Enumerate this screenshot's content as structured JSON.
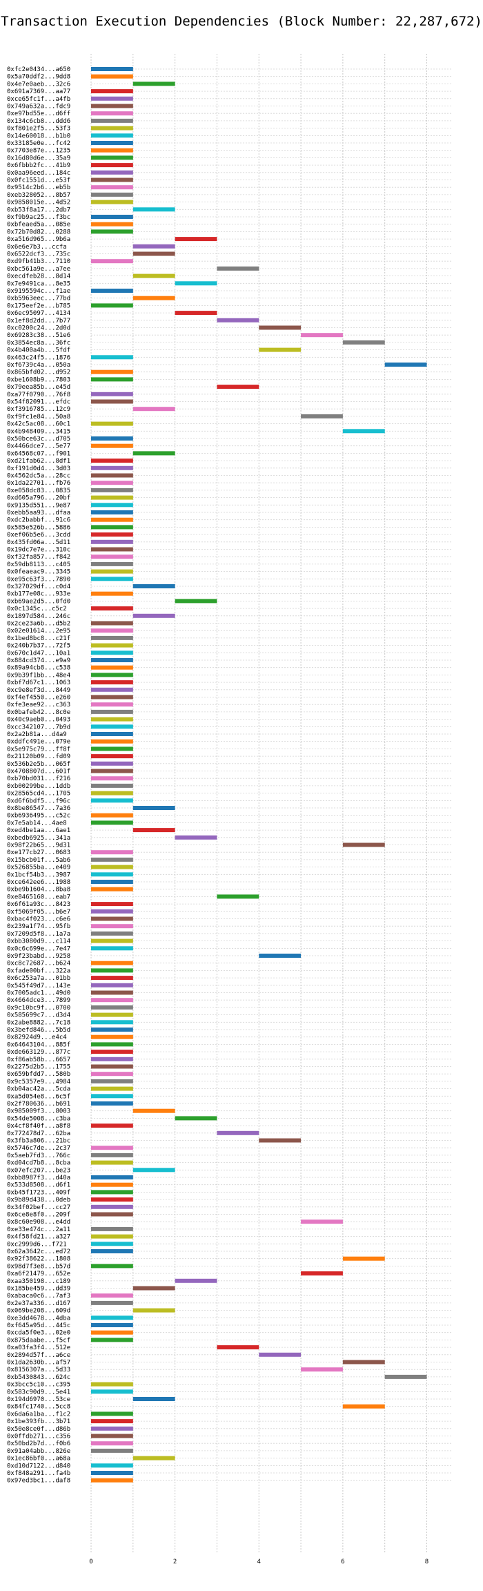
{
  "chart_data": {
    "type": "bar",
    "title": "Transaction Execution Dependencies (Block Number: 22,287,672)",
    "xlabel": "",
    "ylabel": "",
    "xlim": [
      0,
      8.6
    ],
    "xticks": [
      0,
      2,
      4,
      6,
      8
    ],
    "grid": true,
    "palette": [
      "#1f77b4",
      "#ff7f0e",
      "#2ca02c",
      "#d62728",
      "#9467bd",
      "#8c564b",
      "#e377c2",
      "#7f7f7f",
      "#bcbd22",
      "#17becf"
    ],
    "transactions": [
      {
        "label": "0xfc2e0434...a650",
        "start": 0,
        "end": 1
      },
      {
        "label": "0x5a70ddf2...9dd8",
        "start": 0,
        "end": 1
      },
      {
        "label": "0x4e7e0aeb...32c6",
        "start": 1,
        "end": 2
      },
      {
        "label": "0x691a7369...aa77",
        "start": 0,
        "end": 1
      },
      {
        "label": "0xce65fc1f...a4fb",
        "start": 0,
        "end": 1
      },
      {
        "label": "0x749a632a...fdc9",
        "start": 0,
        "end": 1
      },
      {
        "label": "0xe97bd55e...d6ff",
        "start": 0,
        "end": 1
      },
      {
        "label": "0x134c6cb8...ddd6",
        "start": 0,
        "end": 1
      },
      {
        "label": "0xf801e2f5...53f3",
        "start": 0,
        "end": 1
      },
      {
        "label": "0x14e60018...b1b0",
        "start": 0,
        "end": 1
      },
      {
        "label": "0x33185e0e...fc42",
        "start": 0,
        "end": 1
      },
      {
        "label": "0x7703e87e...1235",
        "start": 0,
        "end": 1
      },
      {
        "label": "0x16d80d6e...35a9",
        "start": 0,
        "end": 1
      },
      {
        "label": "0x6fbbb2fc...41b9",
        "start": 0,
        "end": 1
      },
      {
        "label": "0x0aa96eed...184c",
        "start": 0,
        "end": 1
      },
      {
        "label": "0x0fc1551d...e53f",
        "start": 0,
        "end": 1
      },
      {
        "label": "0x9514c2b6...eb5b",
        "start": 0,
        "end": 1
      },
      {
        "label": "0xeb328052...8b57",
        "start": 0,
        "end": 1
      },
      {
        "label": "0x9858015e...4d52",
        "start": 0,
        "end": 1
      },
      {
        "label": "0xb53f8a17...2db7",
        "start": 1,
        "end": 2
      },
      {
        "label": "0xf9b9ac25...f3bc",
        "start": 0,
        "end": 1
      },
      {
        "label": "0xbfeaed5a...085e",
        "start": 0,
        "end": 1
      },
      {
        "label": "0x72b70d82...0288",
        "start": 0,
        "end": 1
      },
      {
        "label": "0xa516d965...9b6a",
        "start": 2,
        "end": 3
      },
      {
        "label": "0x6e6e7b3...ccfa",
        "start": 1,
        "end": 2
      },
      {
        "label": "0x6522dcf3...735c",
        "start": 1,
        "end": 2
      },
      {
        "label": "0xd9fb41b3...7110",
        "start": 0,
        "end": 1
      },
      {
        "label": "0xbc561a9e...a7ee",
        "start": 3,
        "end": 4
      },
      {
        "label": "0xecdfeb28...8d14",
        "start": 1,
        "end": 2
      },
      {
        "label": "0x7e9491ca...8e35",
        "start": 2,
        "end": 3
      },
      {
        "label": "0x9195594c...f1ae",
        "start": 0,
        "end": 1
      },
      {
        "label": "0xb5963eec...77bd",
        "start": 1,
        "end": 2
      },
      {
        "label": "0x175eef2e...b785",
        "start": 0,
        "end": 1
      },
      {
        "label": "0x6ec95097...4134",
        "start": 2,
        "end": 3
      },
      {
        "label": "0x1ef8d2dd...7b77",
        "start": 3,
        "end": 4
      },
      {
        "label": "0xc0200c24...2d0d",
        "start": 4,
        "end": 5
      },
      {
        "label": "0x69283c38...51e6",
        "start": 5,
        "end": 6
      },
      {
        "label": "0x3854ec8a...36fc",
        "start": 6,
        "end": 7
      },
      {
        "label": "0x4b400a4b...5fdf",
        "start": 4,
        "end": 5
      },
      {
        "label": "0x463c24f5...1876",
        "start": 0,
        "end": 1
      },
      {
        "label": "0xf6739c4a...050a",
        "start": 7,
        "end": 8
      },
      {
        "label": "0x865bfd02...d952",
        "start": 0,
        "end": 1
      },
      {
        "label": "0xbe1608b9...7803",
        "start": 0,
        "end": 1
      },
      {
        "label": "0x79eea85b...e45d",
        "start": 3,
        "end": 4
      },
      {
        "label": "0xa77f0790...76f8",
        "start": 0,
        "end": 1
      },
      {
        "label": "0x54f82091...efdc",
        "start": 0,
        "end": 1
      },
      {
        "label": "0xf3916785...12c9",
        "start": 1,
        "end": 2
      },
      {
        "label": "0xf9fc1e84...50a8",
        "start": 5,
        "end": 6
      },
      {
        "label": "0x42c5ac08...60c1",
        "start": 0,
        "end": 1
      },
      {
        "label": "0x4b948409...3415",
        "start": 6,
        "end": 7
      },
      {
        "label": "0x50bce63c...d705",
        "start": 0,
        "end": 1
      },
      {
        "label": "0x4466dce7...5e77",
        "start": 0,
        "end": 1
      },
      {
        "label": "0x64568c07...f901",
        "start": 1,
        "end": 2
      },
      {
        "label": "0xd21fab62...8df1",
        "start": 0,
        "end": 1
      },
      {
        "label": "0xf191d0d4...3d03",
        "start": 0,
        "end": 1
      },
      {
        "label": "0x4562dc5a...28cc",
        "start": 0,
        "end": 1
      },
      {
        "label": "0x1da22701...fb76",
        "start": 0,
        "end": 1
      },
      {
        "label": "0xe058dc83...0835",
        "start": 0,
        "end": 1
      },
      {
        "label": "0xd605a796...20bf",
        "start": 0,
        "end": 1
      },
      {
        "label": "0x9135d551...9e87",
        "start": 0,
        "end": 1
      },
      {
        "label": "0xebb5aa93...dfaa",
        "start": 0,
        "end": 1
      },
      {
        "label": "0xdc2babbf...91c6",
        "start": 0,
        "end": 1
      },
      {
        "label": "0x585e526b...5886",
        "start": 0,
        "end": 1
      },
      {
        "label": "0xef06b5e6...3cdd",
        "start": 0,
        "end": 1
      },
      {
        "label": "0x435fd06a...5d11",
        "start": 0,
        "end": 1
      },
      {
        "label": "0x19dc7e7e...310c",
        "start": 0,
        "end": 1
      },
      {
        "label": "0xf32fa857...f842",
        "start": 0,
        "end": 1
      },
      {
        "label": "0x59db8113...c405",
        "start": 0,
        "end": 1
      },
      {
        "label": "0x0feaeac9...3345",
        "start": 0,
        "end": 1
      },
      {
        "label": "0xe95c63f3...7890",
        "start": 0,
        "end": 1
      },
      {
        "label": "0x327029df...c0d4",
        "start": 1,
        "end": 2
      },
      {
        "label": "0xb177e08c...933e",
        "start": 0,
        "end": 1
      },
      {
        "label": "0xb69ae2d5...0fd0",
        "start": 2,
        "end": 3
      },
      {
        "label": "0x0c1345c...c5c2",
        "start": 0,
        "end": 1
      },
      {
        "label": "0x1897d584...246c",
        "start": 1,
        "end": 2
      },
      {
        "label": "0x2ce23a6b...d5b2",
        "start": 0,
        "end": 1
      },
      {
        "label": "0x02e01614...2e95",
        "start": 0,
        "end": 1
      },
      {
        "label": "0x1bed8bc8...c21f",
        "start": 0,
        "end": 1
      },
      {
        "label": "0x240b7b37...72f5",
        "start": 0,
        "end": 1
      },
      {
        "label": "0x670c1d47...10a1",
        "start": 0,
        "end": 1
      },
      {
        "label": "0x884cd374...e9a9",
        "start": 0,
        "end": 1
      },
      {
        "label": "0x89a94cb8...c538",
        "start": 0,
        "end": 1
      },
      {
        "label": "0x9b39f1bb...48e4",
        "start": 0,
        "end": 1
      },
      {
        "label": "0xbf7d67c1...1063",
        "start": 0,
        "end": 1
      },
      {
        "label": "0xc9e8ef3d...8449",
        "start": 0,
        "end": 1
      },
      {
        "label": "0xf4ef4550...e260",
        "start": 0,
        "end": 1
      },
      {
        "label": "0xfe3eae92...c363",
        "start": 0,
        "end": 1
      },
      {
        "label": "0x0bafeb42...8c0e",
        "start": 0,
        "end": 1
      },
      {
        "label": "0x40c9aeb0...0493",
        "start": 0,
        "end": 1
      },
      {
        "label": "0xcc342107...7b9d",
        "start": 0,
        "end": 1
      },
      {
        "label": "0x2a2b81a...d4a9",
        "start": 0,
        "end": 1
      },
      {
        "label": "0xddfc491e...079e",
        "start": 0,
        "end": 1
      },
      {
        "label": "0x5e975c79...ff8f",
        "start": 0,
        "end": 1
      },
      {
        "label": "0x21120b09...fd09",
        "start": 0,
        "end": 1
      },
      {
        "label": "0x536b2e5b...065f",
        "start": 0,
        "end": 1
      },
      {
        "label": "0x4708807d...601f",
        "start": 0,
        "end": 1
      },
      {
        "label": "0xb70bd031...f216",
        "start": 0,
        "end": 1
      },
      {
        "label": "0xb00299be...1ddb",
        "start": 0,
        "end": 1
      },
      {
        "label": "0x28565cd4...1705",
        "start": 0,
        "end": 1
      },
      {
        "label": "0xd6f6bdf5...f96c",
        "start": 0,
        "end": 1
      },
      {
        "label": "0x8be86547...7a36",
        "start": 1,
        "end": 2
      },
      {
        "label": "0xb6936495...c52c",
        "start": 0,
        "end": 1
      },
      {
        "label": "0x7e5ab14...4ae8",
        "start": 0,
        "end": 1
      },
      {
        "label": "0xed4be1aa...6ae1",
        "start": 1,
        "end": 2
      },
      {
        "label": "0xbedb6925...341a",
        "start": 2,
        "end": 3
      },
      {
        "label": "0x98f22b65...9d31",
        "start": 6,
        "end": 7
      },
      {
        "label": "0xe177cb27...0683",
        "start": 0,
        "end": 1
      },
      {
        "label": "0x15bcb01f...5ab6",
        "start": 0,
        "end": 1
      },
      {
        "label": "0x526855ba...e409",
        "start": 0,
        "end": 1
      },
      {
        "label": "0x1bcf54b3...3987",
        "start": 0,
        "end": 1
      },
      {
        "label": "0xce642ee6...1988",
        "start": 0,
        "end": 1
      },
      {
        "label": "0xbe9b1604...8ba8",
        "start": 0,
        "end": 1
      },
      {
        "label": "0xe8465160...eab7",
        "start": 3,
        "end": 4
      },
      {
        "label": "0x6f61a93c...8423",
        "start": 0,
        "end": 1
      },
      {
        "label": "0xf5069f05...b6e7",
        "start": 0,
        "end": 1
      },
      {
        "label": "0xbac4f023...c6e6",
        "start": 0,
        "end": 1
      },
      {
        "label": "0x239a1f74...95fb",
        "start": 0,
        "end": 1
      },
      {
        "label": "0x7209d5f8...1a7a",
        "start": 0,
        "end": 1
      },
      {
        "label": "0xbb3080d9...c114",
        "start": 0,
        "end": 1
      },
      {
        "label": "0x0c6c699e...7e47",
        "start": 0,
        "end": 1
      },
      {
        "label": "0x9f23babd...9258",
        "start": 4,
        "end": 5
      },
      {
        "label": "0xc8c72687...b624",
        "start": 0,
        "end": 1
      },
      {
        "label": "0xfade00bf...322a",
        "start": 0,
        "end": 1
      },
      {
        "label": "0x6c253a7a...01bb",
        "start": 0,
        "end": 1
      },
      {
        "label": "0x545f49d7...143e",
        "start": 0,
        "end": 1
      },
      {
        "label": "0x7005adc1...49d0",
        "start": 0,
        "end": 1
      },
      {
        "label": "0x4664dce3...7899",
        "start": 0,
        "end": 1
      },
      {
        "label": "0x9c10bc9f...0700",
        "start": 0,
        "end": 1
      },
      {
        "label": "0x585699c7...d3d4",
        "start": 0,
        "end": 1
      },
      {
        "label": "0x2abe8882...7c18",
        "start": 0,
        "end": 1
      },
      {
        "label": "0x3befd846...5b5d",
        "start": 0,
        "end": 1
      },
      {
        "label": "0x82924d9...e4c4",
        "start": 0,
        "end": 1
      },
      {
        "label": "0x64643104...885f",
        "start": 0,
        "end": 1
      },
      {
        "label": "0xde663129...877c",
        "start": 0,
        "end": 1
      },
      {
        "label": "0xf86ab58b...6657",
        "start": 0,
        "end": 1
      },
      {
        "label": "0x2275d2b5...1755",
        "start": 0,
        "end": 1
      },
      {
        "label": "0x659bfdd7...580b",
        "start": 0,
        "end": 1
      },
      {
        "label": "0x9c5357e9...4984",
        "start": 0,
        "end": 1
      },
      {
        "label": "0xb04ac42a...5cda",
        "start": 0,
        "end": 1
      },
      {
        "label": "0xa5d054e8...6c5f",
        "start": 0,
        "end": 1
      },
      {
        "label": "0x2f780636...b691",
        "start": 0,
        "end": 1
      },
      {
        "label": "0x985009f3...8003",
        "start": 1,
        "end": 2
      },
      {
        "label": "0x54de5008...c3ba",
        "start": 2,
        "end": 3
      },
      {
        "label": "0x4cf8f40f...a8f8",
        "start": 0,
        "end": 1
      },
      {
        "label": "0x772478d7...62ba",
        "start": 3,
        "end": 4
      },
      {
        "label": "0x3fb3a806...21bc",
        "start": 4,
        "end": 5
      },
      {
        "label": "0x5746c7de...2c37",
        "start": 0,
        "end": 1
      },
      {
        "label": "0x5aeb7fd3...766c",
        "start": 0,
        "end": 1
      },
      {
        "label": "0xd04cd7b8...8cba",
        "start": 0,
        "end": 1
      },
      {
        "label": "0x07efc207...be23",
        "start": 1,
        "end": 2
      },
      {
        "label": "0xbb8987f3...d40a",
        "start": 0,
        "end": 1
      },
      {
        "label": "0x533d8508...d6f1",
        "start": 0,
        "end": 1
      },
      {
        "label": "0xb45f1723...409f",
        "start": 0,
        "end": 1
      },
      {
        "label": "0x9b89d438...0deb",
        "start": 0,
        "end": 1
      },
      {
        "label": "0x34f02bef...cc27",
        "start": 0,
        "end": 1
      },
      {
        "label": "0x6ce8e8f0...209f",
        "start": 0,
        "end": 1
      },
      {
        "label": "0x8c60e908...e4dd",
        "start": 5,
        "end": 6
      },
      {
        "label": "0xe33e474c...2a11",
        "start": 0,
        "end": 1
      },
      {
        "label": "0x4f58fd21...a327",
        "start": 0,
        "end": 1
      },
      {
        "label": "0xc2999d6...f721",
        "start": 0,
        "end": 1
      },
      {
        "label": "0x62a3642c...ed72",
        "start": 0,
        "end": 1
      },
      {
        "label": "0x92f38622...1808",
        "start": 6,
        "end": 7
      },
      {
        "label": "0x98d7f3e8...b57d",
        "start": 0,
        "end": 1
      },
      {
        "label": "0xa6f21479...652e",
        "start": 5,
        "end": 6
      },
      {
        "label": "0xaa350198...c189",
        "start": 2,
        "end": 3
      },
      {
        "label": "0x185be459...dd39",
        "start": 1,
        "end": 2
      },
      {
        "label": "0xabaca0c6...7af3",
        "start": 0,
        "end": 1
      },
      {
        "label": "0x2e37a336...d167",
        "start": 0,
        "end": 1
      },
      {
        "label": "0x069be208...609d",
        "start": 1,
        "end": 2
      },
      {
        "label": "0xe3dd4678...4dba",
        "start": 0,
        "end": 1
      },
      {
        "label": "0xf645a95d...445c",
        "start": 0,
        "end": 1
      },
      {
        "label": "0xcda5f0e3...02e0",
        "start": 0,
        "end": 1
      },
      {
        "label": "0x875daabe...f5cf",
        "start": 0,
        "end": 1
      },
      {
        "label": "0xa03fa3f4...512e",
        "start": 3,
        "end": 4
      },
      {
        "label": "0x2894d57f...a6ce",
        "start": 4,
        "end": 5
      },
      {
        "label": "0x1da2630b...af57",
        "start": 6,
        "end": 7
      },
      {
        "label": "0x8156307a...5d33",
        "start": 5,
        "end": 6
      },
      {
        "label": "0xb5430843...624c",
        "start": 7,
        "end": 8
      },
      {
        "label": "0x3bcc5c10...c395",
        "start": 0,
        "end": 1
      },
      {
        "label": "0x583c90d9...5e41",
        "start": 0,
        "end": 1
      },
      {
        "label": "0x194d6970...53ce",
        "start": 1,
        "end": 2
      },
      {
        "label": "0x84fc1740...5cc8",
        "start": 6,
        "end": 7
      },
      {
        "label": "0x6da6a1ba...f1c2",
        "start": 0,
        "end": 1
      },
      {
        "label": "0x1be393fb...3b71",
        "start": 0,
        "end": 1
      },
      {
        "label": "0x50e8ce0f...d86b",
        "start": 0,
        "end": 1
      },
      {
        "label": "0x0ffdb271...c356",
        "start": 0,
        "end": 1
      },
      {
        "label": "0x50bd2b7d...f0b6",
        "start": 0,
        "end": 1
      },
      {
        "label": "0x91a04abb...826e",
        "start": 0,
        "end": 1
      },
      {
        "label": "0x1ec86bf0...a68a",
        "start": 1,
        "end": 2
      },
      {
        "label": "0xd10d7122...d840",
        "start": 0,
        "end": 1
      },
      {
        "label": "0xf848a291...fa4b",
        "start": 0,
        "end": 1
      },
      {
        "label": "0x97ed3bc1...daf8",
        "start": 0,
        "end": 1
      }
    ]
  }
}
